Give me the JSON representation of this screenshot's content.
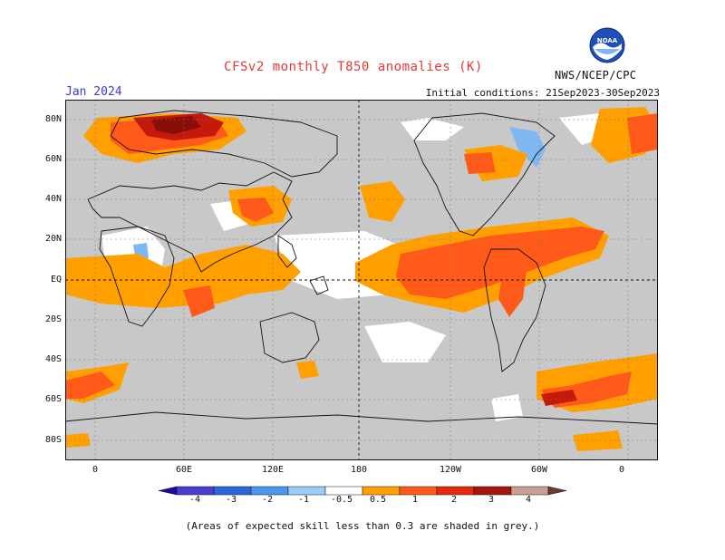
{
  "header": {
    "title": "CFSv2 monthly T850 anomalies (K)",
    "period": "Jan 2024",
    "initial_conditions": "Initial conditions: 21Sep2023-30Sep2023",
    "agency": "NWS/NCEP/CPC",
    "logo_text": "NOAA"
  },
  "map": {
    "lat_labels": [
      "80N",
      "60N",
      "40N",
      "20N",
      "EQ",
      "20S",
      "40S",
      "60S",
      "80S"
    ],
    "lon_labels": [
      "0",
      "60E",
      "120E",
      "180",
      "120W",
      "60W",
      "0"
    ],
    "lat_range": [
      -90,
      90
    ],
    "lon_range": [
      -20,
      380
    ],
    "reference_lines": [
      "equator",
      "dateline"
    ]
  },
  "colorbar": {
    "tick_labels": [
      "-4",
      "-3",
      "-2",
      "-1",
      "-0.5",
      "0.5",
      "1",
      "2",
      "3",
      "4"
    ],
    "colors": [
      "#1a0aa3",
      "#4c3ccf",
      "#2e67dd",
      "#4b96ef",
      "#9ccaf9",
      "#ffffff",
      "#ffa000",
      "#ff5a1a",
      "#e42a0c",
      "#a5150c",
      "#c9a095",
      "#6b3a30"
    ]
  },
  "footnote": "(Areas of expected skill less than 0.3 are shaded in grey.)"
}
